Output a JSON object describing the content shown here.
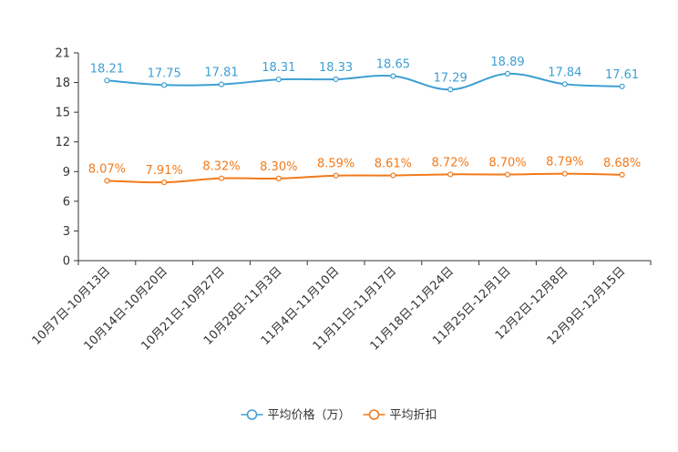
{
  "chart_data": {
    "type": "line",
    "categories": [
      "10月7日-10月13日",
      "10月14日-10月20日",
      "10月21日-10月27日",
      "10月28日-11月3日",
      "11月4日-11月10日",
      "11月11日-11月17日",
      "11月18日-11月24日",
      "11月25日-12月1日",
      "12月2日-12月8日",
      "12月9日-12月15日"
    ],
    "series": [
      {
        "name": "平均价格（万）",
        "color": "#3e9fd3",
        "values": [
          18.21,
          17.75,
          17.81,
          18.31,
          18.33,
          18.65,
          17.29,
          18.89,
          17.84,
          17.61
        ],
        "labels": [
          "18.21",
          "17.75",
          "17.81",
          "18.31",
          "18.33",
          "18.65",
          "17.29",
          "18.89",
          "17.84",
          "17.61"
        ]
      },
      {
        "name": "平均折扣",
        "color": "#f27a1a",
        "values": [
          8.07,
          7.91,
          8.32,
          8.3,
          8.59,
          8.61,
          8.72,
          8.7,
          8.79,
          8.68
        ],
        "labels": [
          "8.07%",
          "7.91%",
          "8.32%",
          "8.30%",
          "8.59%",
          "8.61%",
          "8.72%",
          "8.70%",
          "8.79%",
          "8.68%"
        ]
      }
    ],
    "y_ticks": [
      0,
      3,
      6,
      9,
      12,
      15,
      18,
      21
    ],
    "ylim": [
      0,
      21
    ],
    "title": "",
    "xlabel": "",
    "ylabel": "",
    "legend_position": "bottom-center",
    "axis_color": "#333333"
  }
}
